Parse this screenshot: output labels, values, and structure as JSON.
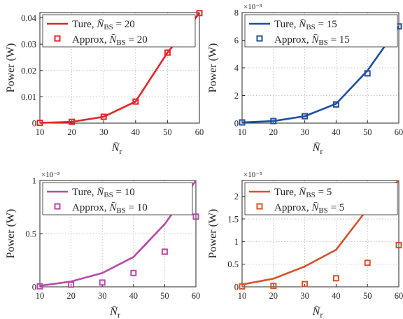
{
  "chart_data": [
    {
      "type": "line",
      "id": "p1",
      "xlabel": "N̄ r",
      "ylabel": "Power (W)",
      "exponent_label": "",
      "xlim": [
        10,
        60
      ],
      "ylim": [
        0,
        0.042
      ],
      "xticks": [
        10,
        20,
        30,
        40,
        50,
        60
      ],
      "xtick_labels": [
        "10",
        "20",
        "30",
        "40",
        "50",
        "60"
      ],
      "yticks": [
        0,
        0.01,
        0.02,
        0.03,
        0.04
      ],
      "ytick_labels": [
        "0",
        "0.01",
        "0.02",
        "0.03",
        "0.04"
      ],
      "grid": true,
      "legend_position": "top-left",
      "color": "#e8232a",
      "x": [
        10,
        20,
        30,
        40,
        50,
        60
      ],
      "series": [
        {
          "name": "Ture, N̄BS = 20",
          "kind": "line",
          "values": [
            0.0001,
            0.0005,
            0.0024,
            0.0082,
            0.0268,
            0.0418
          ]
        },
        {
          "name": "Approx, N̄BS = 20",
          "kind": "marker",
          "values": [
            0.0001,
            0.0005,
            0.0024,
            0.0082,
            0.0268,
            0.0418
          ]
        }
      ]
    },
    {
      "type": "line",
      "id": "p2",
      "xlabel": "N̄ r",
      "ylabel": "Power (W)",
      "exponent_label": "×10⁻³",
      "xlim": [
        10,
        60
      ],
      "ylim": [
        0,
        8
      ],
      "xticks": [
        10,
        20,
        30,
        40,
        50,
        60
      ],
      "xtick_labels": [
        "10",
        "20",
        "30",
        "40",
        "50",
        "60"
      ],
      "yticks": [
        0,
        2,
        4,
        6,
        8
      ],
      "ytick_labels": [
        "0",
        "2",
        "4",
        "6",
        "8"
      ],
      "grid": true,
      "legend_position": "top-left",
      "color": "#1f4ea1",
      "x": [
        10,
        20,
        30,
        40,
        50,
        60
      ],
      "series": [
        {
          "name": "Ture, N̄BS = 15",
          "kind": "line",
          "values": [
            0.05,
            0.15,
            0.5,
            1.4,
            3.8,
            7.0
          ]
        },
        {
          "name": "Approx, N̄BS = 15",
          "kind": "marker",
          "values": [
            0.05,
            0.15,
            0.5,
            1.35,
            3.6,
            7.0
          ]
        }
      ]
    },
    {
      "type": "line",
      "id": "p3",
      "xlabel": "N̄ r",
      "ylabel": "Power (W)",
      "exponent_label": "×10⁻³",
      "xlim": [
        10,
        60
      ],
      "ylim": [
        0,
        1.0
      ],
      "xticks": [
        10,
        20,
        30,
        40,
        50,
        60
      ],
      "xtick_labels": [
        "10",
        "20",
        "30",
        "40",
        "50",
        "60"
      ],
      "yticks": [
        0,
        0.5,
        1
      ],
      "ytick_labels": [
        "0",
        "0.5",
        "1"
      ],
      "grid": true,
      "legend_position": "top-left",
      "color": "#b84aa6",
      "x": [
        10,
        20,
        30,
        40,
        50,
        60
      ],
      "series": [
        {
          "name": "Ture, N̄BS = 10",
          "kind": "line",
          "values": [
            0.01,
            0.05,
            0.13,
            0.28,
            0.59,
            1.0
          ]
        },
        {
          "name": "Approx, N̄BS = 10",
          "kind": "marker",
          "values": [
            0.005,
            0.02,
            0.04,
            0.13,
            0.33,
            0.66
          ]
        }
      ]
    },
    {
      "type": "line",
      "id": "p4",
      "xlabel": "N̄ r",
      "ylabel": "Power (W)",
      "exponent_label": "×10⁻⁵",
      "xlim": [
        10,
        60
      ],
      "ylim": [
        0,
        2.35
      ],
      "xticks": [
        10,
        20,
        30,
        40,
        50,
        60
      ],
      "xtick_labels": [
        "10",
        "20",
        "30",
        "40",
        "50",
        "60"
      ],
      "yticks": [
        0,
        0.5,
        1,
        1.5,
        2
      ],
      "ytick_labels": [
        "0",
        "0.5",
        "1",
        "1.5",
        "2"
      ],
      "grid": true,
      "legend_position": "top-left",
      "color": "#d8522a",
      "x": [
        10,
        20,
        30,
        40,
        50,
        60
      ],
      "series": [
        {
          "name": "Ture, N̄BS = 5",
          "kind": "line",
          "values": [
            0.05,
            0.18,
            0.45,
            0.82,
            1.72,
            2.35
          ]
        },
        {
          "name": "Approx, N̄BS = 5",
          "kind": "marker",
          "values": [
            0.01,
            0.02,
            0.06,
            0.19,
            0.53,
            0.92
          ]
        }
      ]
    }
  ]
}
